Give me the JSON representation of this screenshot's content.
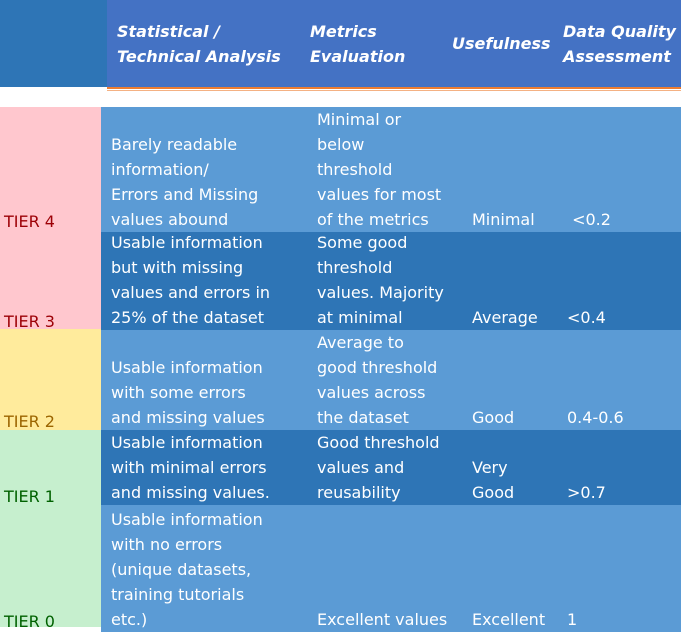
{
  "header": {
    "col1": "Statistical /\nTechnical Analysis",
    "col2": "Metrics\nEvaluation",
    "col3": "Usefulness",
    "col4": "Data Quality\nAssessment"
  },
  "colors": {
    "header_bg": "#4472c4",
    "header_left_bg": "#2e75b6",
    "row_light": "#5b9bd5",
    "row_dark": "#2e75b6",
    "tier_4_bg": "#ffc7ce",
    "tier_3_bg": "#ffc7ce",
    "tier_2_bg": "#ffeb9c",
    "tier_1_bg": "#c6efce",
    "tier_0_bg": "#c6efce"
  },
  "rows": [
    {
      "tier": "TIER 4",
      "tier_color": "#9c0006",
      "analysis": "Barely readable\ninformation/\nErrors and Missing\nvalues abound",
      "metrics": "Minimal or\nbelow\nthreshold\nvalues for most\nof the metrics",
      "usefulness": "Minimal",
      "quality": " <0.2"
    },
    {
      "tier": "TIER 3",
      "tier_color": "#9c0006",
      "analysis": "Usable information\nbut with missing\nvalues and errors in\n25% of the dataset",
      "metrics": "Some good\nthreshold\nvalues. Majority\nat minimal",
      "usefulness": "Average",
      "quality": "<0.4"
    },
    {
      "tier": "TIER 2",
      "tier_color": "#9c6500",
      "analysis": "Usable information\nwith some errors\nand missing values",
      "metrics": "Average to\ngood threshold\nvalues across\nthe dataset",
      "usefulness": "Good",
      "quality": "0.4-0.6"
    },
    {
      "tier": "TIER 1",
      "tier_color": "#006100",
      "analysis": "Usable information\nwith minimal errors\nand missing values.",
      "metrics": "Good threshold\nvalues and\nreusability",
      "usefulness": "Very\nGood",
      "quality": ">0.7"
    },
    {
      "tier": "TIER 0",
      "tier_color": "#006100",
      "analysis": "Usable information\nwith no errors\n(unique datasets,\ntraining tutorials\netc.)",
      "metrics": "Excellent values",
      "usefulness": "Excellent",
      "quality": "1"
    }
  ]
}
